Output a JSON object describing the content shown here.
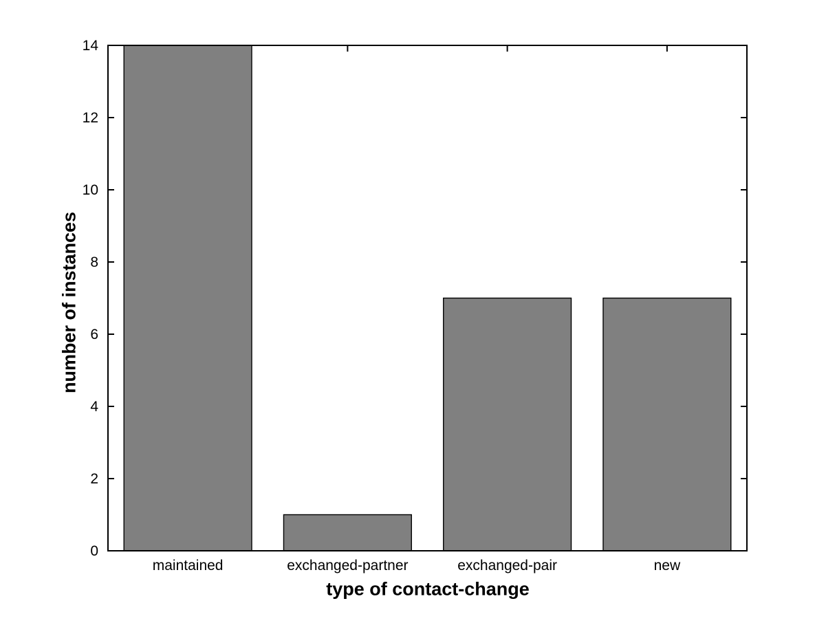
{
  "chart_data": {
    "type": "bar",
    "categories": [
      "maintained",
      "exchanged-partner",
      "exchanged-pair",
      "new"
    ],
    "values": [
      14,
      1,
      7,
      7
    ],
    "xlabel": "type of contact-change",
    "ylabel": "number of instances",
    "ylim": [
      0,
      14
    ],
    "yticks": [
      0,
      2,
      4,
      6,
      8,
      10,
      12,
      14
    ],
    "grid": false,
    "legend_position": "none",
    "bar_fill_color": "#808080",
    "bar_edge_color": "#000000",
    "axis_color": "#000000",
    "background_color": "#ffffff",
    "bar_width_fraction": 0.8
  }
}
